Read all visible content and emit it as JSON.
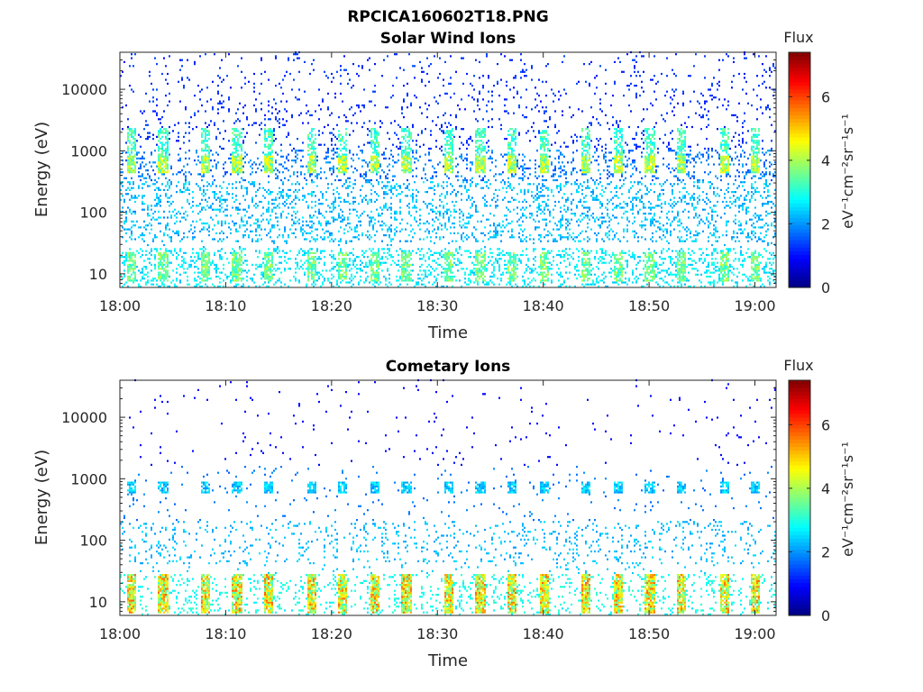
{
  "figure": {
    "title": "RPCICA160602T18.PNG"
  },
  "colorbar": {
    "label": "Flux",
    "unit_label": "eV⁻¹cm⁻²sr⁻¹s⁻¹",
    "range": [
      0,
      7.4
    ],
    "ticks": [
      "0",
      "2",
      "4",
      "6"
    ],
    "colormap": "jet"
  },
  "chart_data": [
    {
      "type": "heatmap",
      "title": "Solar Wind Ions",
      "xlabel": "Time",
      "ylabel": "Energy (eV)",
      "x_range": [
        "18:00",
        "19:02"
      ],
      "x_ticks": [
        "18:00",
        "18:10",
        "18:20",
        "18:30",
        "18:40",
        "18:50",
        "19:00"
      ],
      "y_scale": "log",
      "y_range": [
        6,
        40000
      ],
      "y_ticks": [
        "10",
        "100",
        "1000",
        "10000"
      ],
      "peak_energy_eV": 650,
      "peak_flux": 4.8,
      "low_energy_band_eV": [
        7,
        25
      ],
      "low_energy_flux": 4.2,
      "burst_times": [
        "18:01",
        "18:04",
        "18:08",
        "18:11",
        "18:14",
        "18:18",
        "18:21",
        "18:24",
        "18:27",
        "18:31",
        "18:34",
        "18:37",
        "18:40",
        "18:44",
        "18:47",
        "18:50",
        "18:53",
        "18:57",
        "19:00"
      ]
    },
    {
      "type": "heatmap",
      "title": "Cometary Ions",
      "xlabel": "Time",
      "ylabel": "Energy (eV)",
      "x_range": [
        "18:00",
        "19:02"
      ],
      "x_ticks": [
        "18:00",
        "18:10",
        "18:20",
        "18:30",
        "18:40",
        "18:50",
        "19:00"
      ],
      "y_scale": "log",
      "y_range": [
        6,
        40000
      ],
      "y_ticks": [
        "10",
        "100",
        "1000",
        "10000"
      ],
      "peak_energy_eV": 650,
      "peak_flux": 2.8,
      "low_energy_band_eV": [
        7,
        28
      ],
      "low_energy_flux": 5.8,
      "burst_times": [
        "18:01",
        "18:04",
        "18:08",
        "18:11",
        "18:14",
        "18:18",
        "18:21",
        "18:24",
        "18:27",
        "18:31",
        "18:34",
        "18:37",
        "18:40",
        "18:44",
        "18:47",
        "18:50",
        "18:53",
        "18:57",
        "19:00"
      ]
    }
  ]
}
